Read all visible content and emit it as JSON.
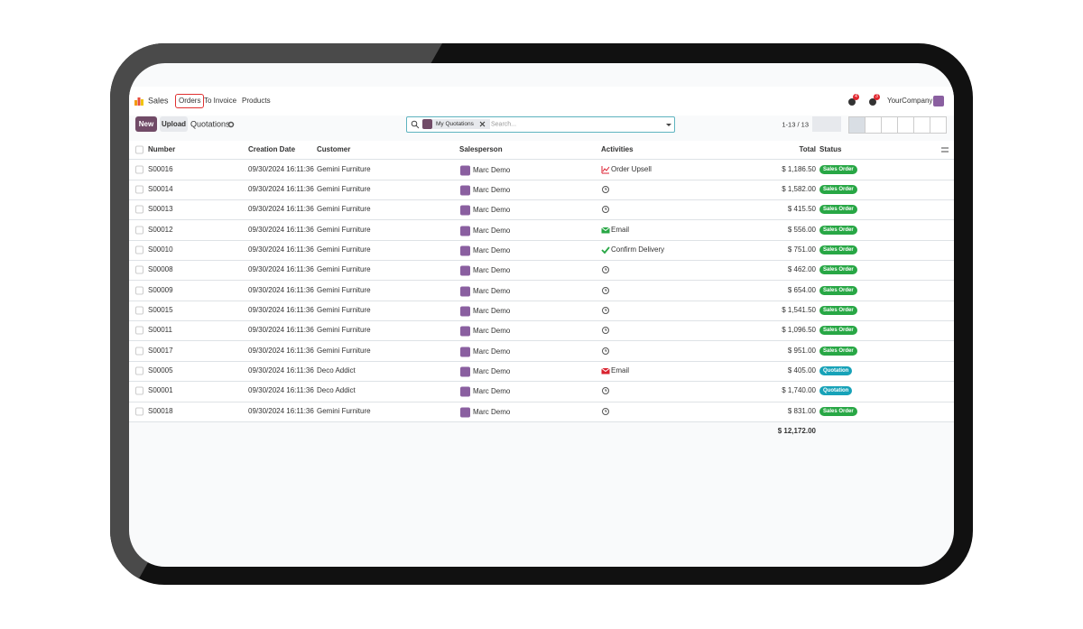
{
  "nav": {
    "app": "Sales",
    "menu": [
      "Orders",
      "To Invoice",
      "Products"
    ],
    "active_menu": 0,
    "notifications": [
      "4",
      "3"
    ],
    "company": "YourCompany"
  },
  "toolbar": {
    "new": "New",
    "upload": "Upload",
    "view": "Quotations",
    "facet": "My Quotations",
    "search_placeholder": "Search...",
    "pager": "1-13 / 13"
  },
  "table": {
    "columns": [
      "Number",
      "Creation Date",
      "Customer",
      "Salesperson",
      "Activities",
      "Total",
      "Status"
    ],
    "rows": [
      {
        "number": "S00016",
        "date": "09/30/2024 16:11:36",
        "customer": "Gemini Furniture",
        "salesperson": "Marc Demo",
        "activity_icon": "chart",
        "activity": "Order Upsell",
        "total": "$ 1,186.50",
        "status": "Sales Order"
      },
      {
        "number": "S00014",
        "date": "09/30/2024 16:11:36",
        "customer": "Gemini Furniture",
        "salesperson": "Marc Demo",
        "activity_icon": "clock",
        "activity": null,
        "total": "$ 1,582.00",
        "status": "Sales Order"
      },
      {
        "number": "S00013",
        "date": "09/30/2024 16:11:36",
        "customer": "Gemini Furniture",
        "salesperson": "Marc Demo",
        "activity_icon": "clock",
        "activity": null,
        "total": "$ 415.50",
        "status": "Sales Order"
      },
      {
        "number": "S00012",
        "date": "09/30/2024 16:11:36",
        "customer": "Gemini Furniture",
        "salesperson": "Marc Demo",
        "activity_icon": "email-green",
        "activity": "Email",
        "total": "$ 556.00",
        "status": "Sales Order"
      },
      {
        "number": "S00010",
        "date": "09/30/2024 16:11:36",
        "customer": "Gemini Furniture",
        "salesperson": "Marc Demo",
        "activity_icon": "check",
        "activity": "Confirm Delivery",
        "total": "$ 751.00",
        "status": "Sales Order"
      },
      {
        "number": "S00008",
        "date": "09/30/2024 16:11:36",
        "customer": "Gemini Furniture",
        "salesperson": "Marc Demo",
        "activity_icon": "clock",
        "activity": null,
        "total": "$ 462.00",
        "status": "Sales Order"
      },
      {
        "number": "S00009",
        "date": "09/30/2024 16:11:36",
        "customer": "Gemini Furniture",
        "salesperson": "Marc Demo",
        "activity_icon": "clock",
        "activity": null,
        "total": "$ 654.00",
        "status": "Sales Order"
      },
      {
        "number": "S00015",
        "date": "09/30/2024 16:11:36",
        "customer": "Gemini Furniture",
        "salesperson": "Marc Demo",
        "activity_icon": "clock",
        "activity": null,
        "total": "$ 1,541.50",
        "status": "Sales Order"
      },
      {
        "number": "S00011",
        "date": "09/30/2024 16:11:36",
        "customer": "Gemini Furniture",
        "salesperson": "Marc Demo",
        "activity_icon": "clock",
        "activity": null,
        "total": "$ 1,096.50",
        "status": "Sales Order"
      },
      {
        "number": "S00017",
        "date": "09/30/2024 16:11:36",
        "customer": "Gemini Furniture",
        "salesperson": "Marc Demo",
        "activity_icon": "clock",
        "activity": null,
        "total": "$ 951.00",
        "status": "Sales Order"
      },
      {
        "number": "S00005",
        "date": "09/30/2024 16:11:36",
        "customer": "Deco Addict",
        "salesperson": "Marc Demo",
        "activity_icon": "email-red",
        "activity": "Email",
        "total": "$ 405.00",
        "status": "Quotation"
      },
      {
        "number": "S00001",
        "date": "09/30/2024 16:11:36",
        "customer": "Deco Addict",
        "salesperson": "Marc Demo",
        "activity_icon": "clock",
        "activity": null,
        "total": "$ 1,740.00",
        "status": "Quotation"
      },
      {
        "number": "S00018",
        "date": "09/30/2024 16:11:36",
        "customer": "Gemini Furniture",
        "salesperson": "Marc Demo",
        "activity_icon": "clock",
        "activity": null,
        "total": "$ 831.00",
        "status": "Sales Order"
      }
    ],
    "sum": "$ 12,172.00"
  }
}
